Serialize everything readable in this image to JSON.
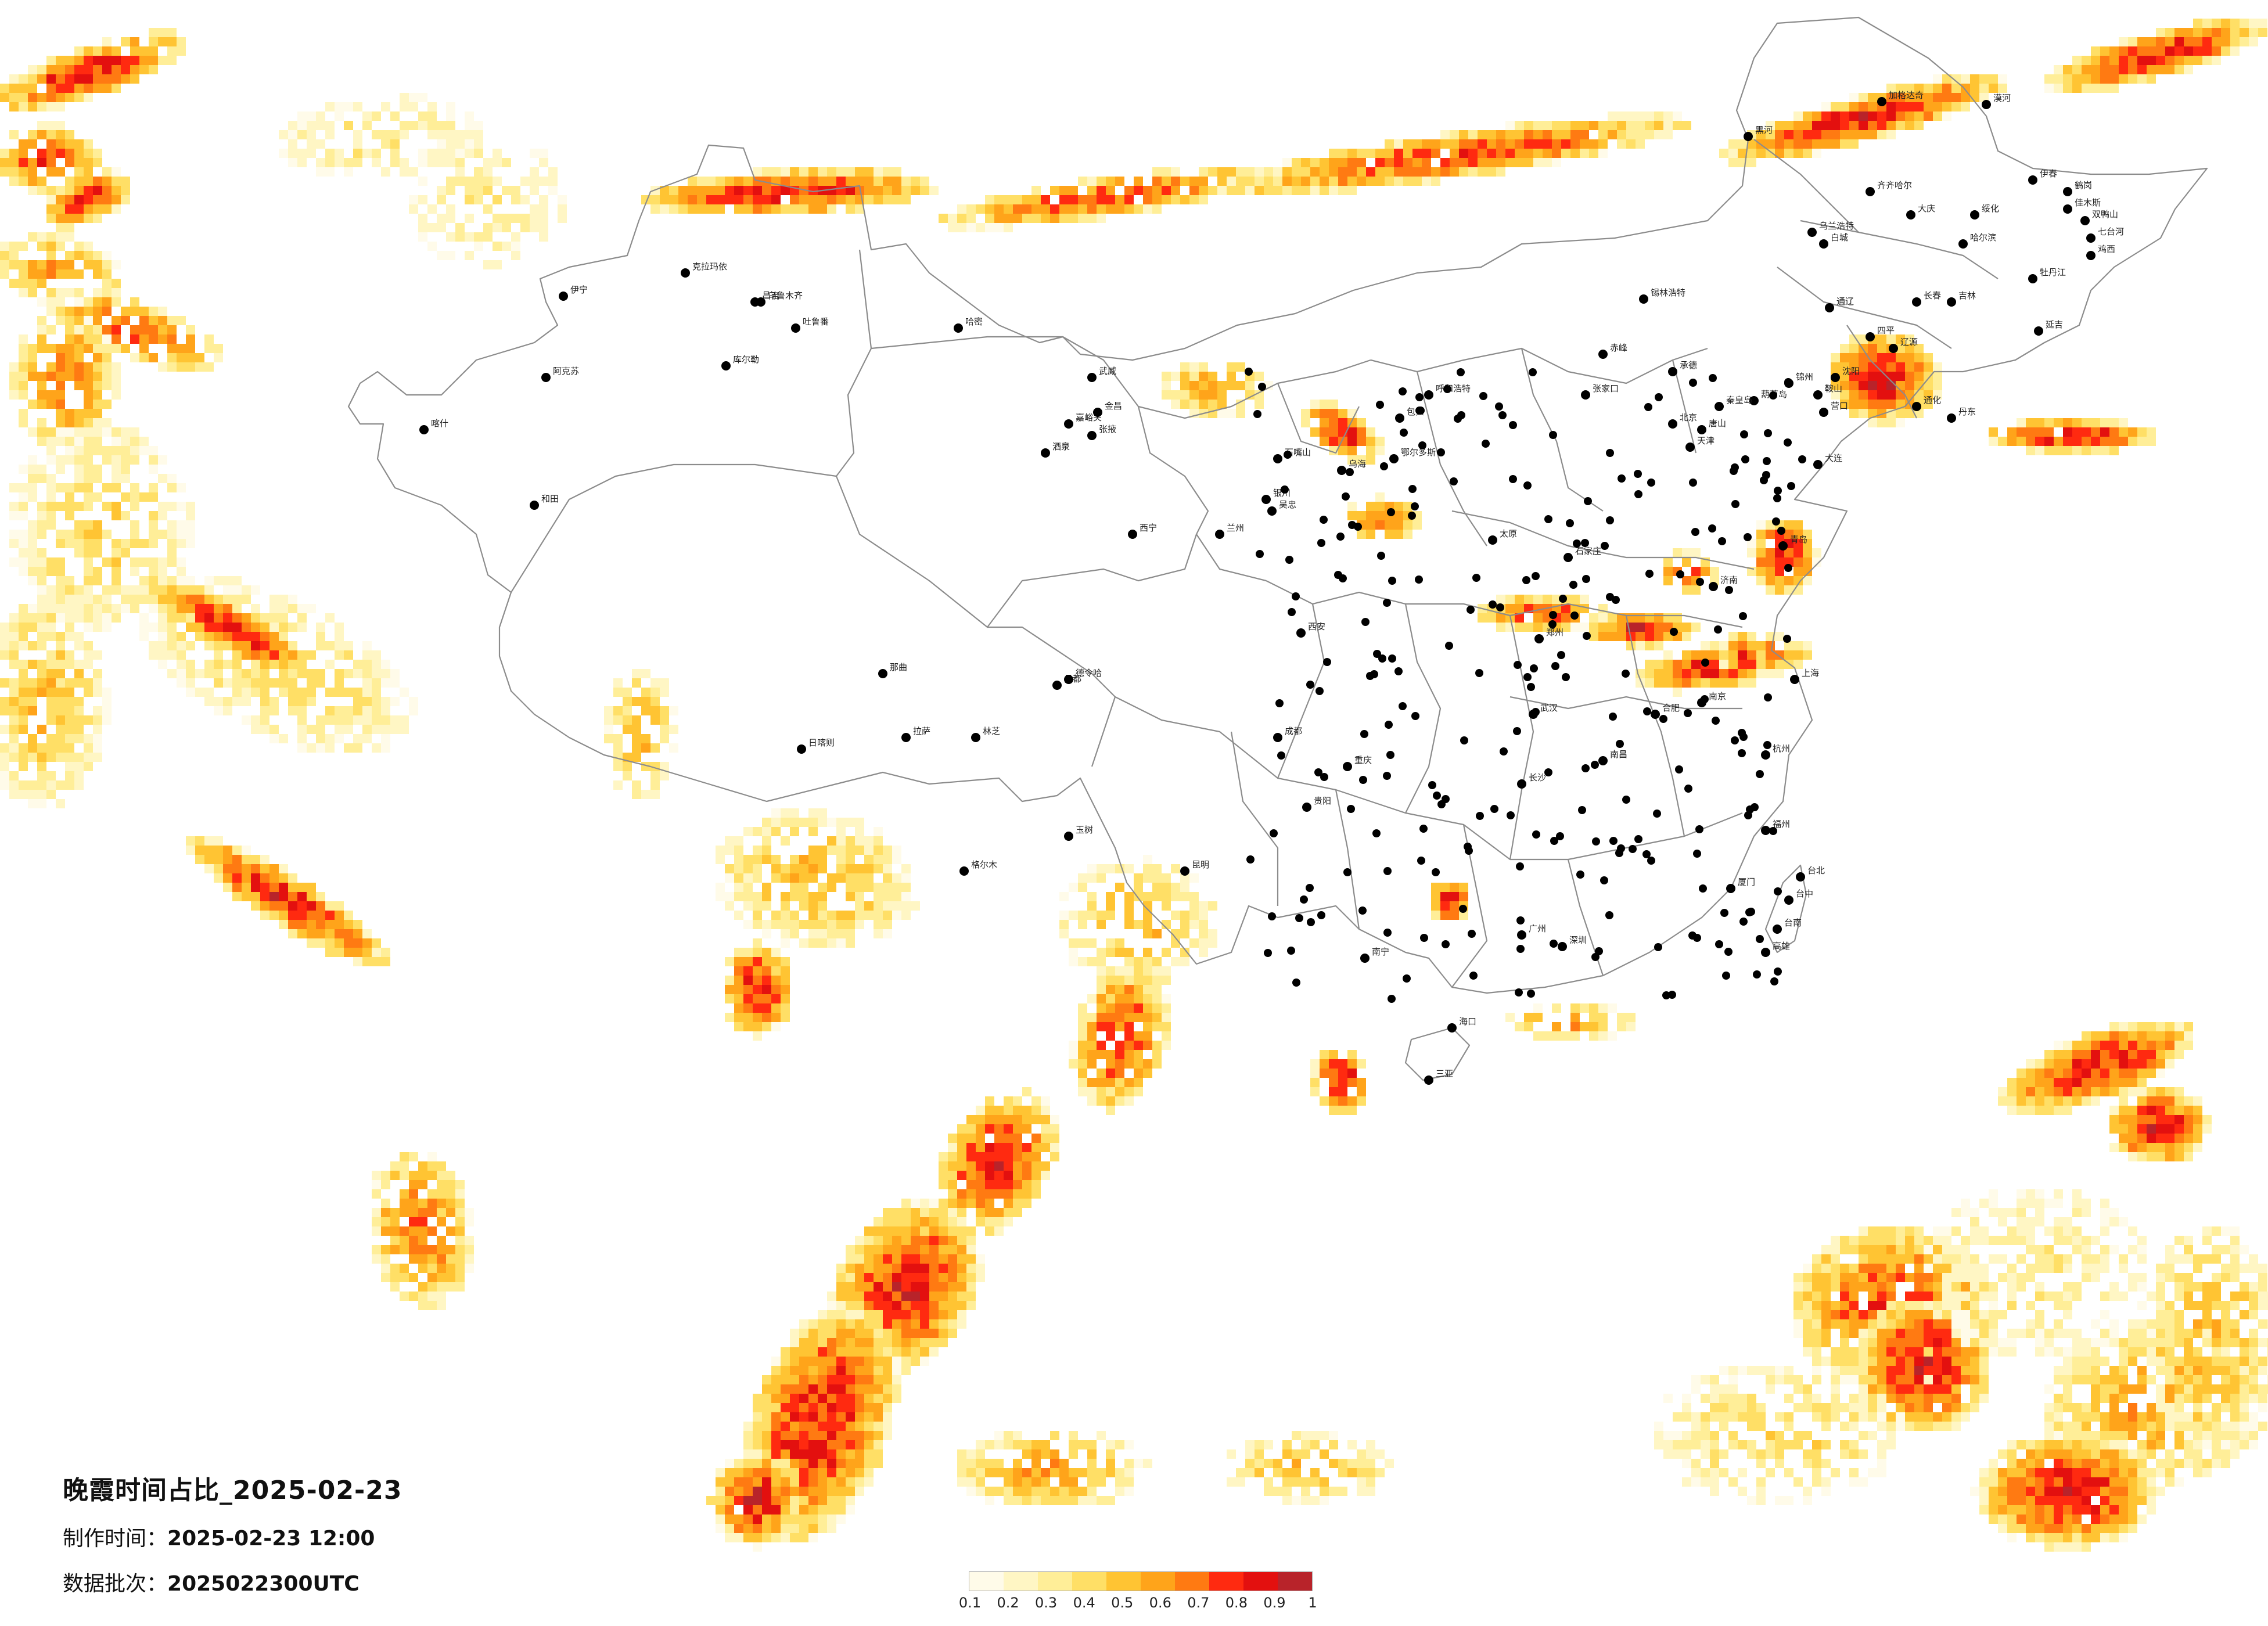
{
  "title": "晚霞时间占比_2025-02-23",
  "meta": {
    "made_label": "制作时间：",
    "made_value": "2025-02-23 12:00",
    "batch_label": "数据批次：",
    "batch_value": "2025022300UTC"
  },
  "legend": {
    "ticks": [
      "0.1",
      "0.2",
      "0.3",
      "0.4",
      "0.5",
      "0.6",
      "0.7",
      "0.8",
      "0.9",
      "1"
    ],
    "colors": [
      "#fffbe9",
      "#fff6c4",
      "#ffee98",
      "#ffdf66",
      "#ffc433",
      "#ffa41a",
      "#ff7a12",
      "#ff2a10",
      "#e3100f",
      "#b8232a"
    ]
  },
  "cities": [
    "加格达奇",
    "黑河",
    "漠河",
    "伊春",
    "鹤岗",
    "齐齐哈尔",
    "大庆",
    "绥化",
    "佳木斯",
    "双鸭山",
    "七台河",
    "鸡西",
    "哈尔滨",
    "乌兰浩特",
    "白城",
    "锡林浩特",
    "通辽",
    "长春",
    "吉林",
    "牡丹江",
    "四平",
    "辽源",
    "沈阳",
    "延吉",
    "通化",
    "丹东",
    "大连",
    "营口",
    "鞍山",
    "锦州",
    "葫芦岛",
    "秦皇岛",
    "承德",
    "张家口",
    "北京",
    "天津",
    "唐山",
    "赤峰",
    "呼和浩特",
    "包头",
    "鄂尔多斯",
    "乌海",
    "银川",
    "石嘴山",
    "吴忠",
    "兰州",
    "西宁",
    "嘉峪关",
    "酒泉",
    "张掖",
    "金昌",
    "武威",
    "克拉玛依",
    "昌吉",
    "乌鲁木齐",
    "吐鲁番",
    "哈密",
    "伊宁",
    "阿克苏",
    "喀什",
    "和田",
    "库尔勒",
    "拉萨",
    "日喀则",
    "林芝",
    "那曲",
    "昌都",
    "格尔木",
    "德令哈",
    "玉树",
    "成都",
    "重庆",
    "贵阳",
    "昆明",
    "南宁",
    "广州",
    "深圳",
    "海口",
    "三亚",
    "长沙",
    "武汉",
    "南昌",
    "杭州",
    "上海",
    "南京",
    "合肥",
    "济南",
    "青岛",
    "郑州",
    "石家庄",
    "太原",
    "西安",
    "福州",
    "厦门",
    "台北",
    "台中",
    "台南",
    "高雄"
  ],
  "city_label_style": "small dark labels beside black dots",
  "colors": {
    "background": "#ffffff",
    "border": "#8c8c8c",
    "city_dot": "#000000"
  }
}
